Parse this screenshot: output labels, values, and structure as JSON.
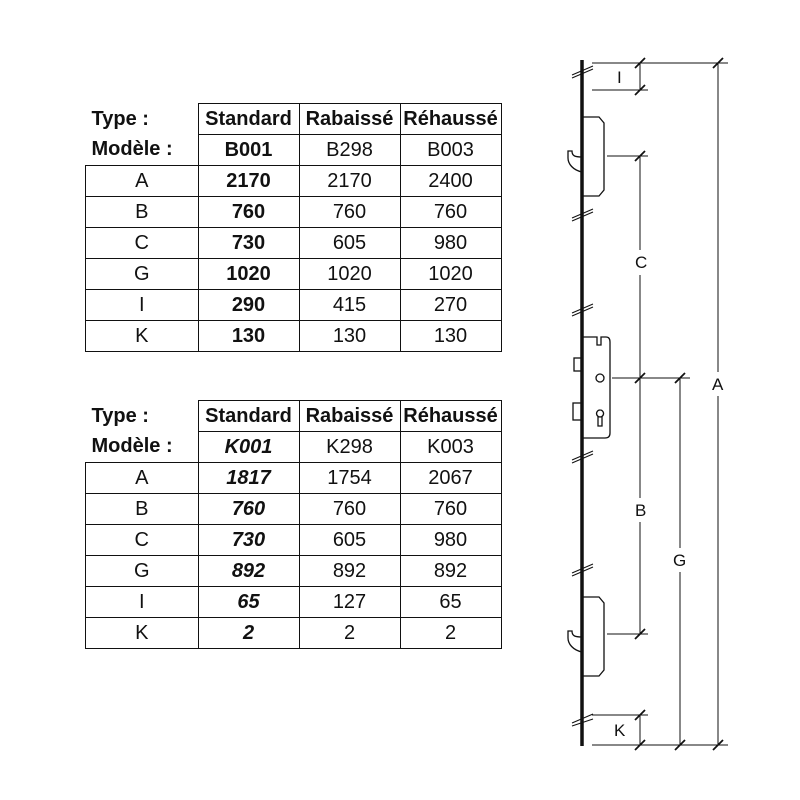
{
  "tables": [
    {
      "type_label": "Type :",
      "model_label": "Modèle :",
      "columns": [
        "Standard",
        "Rabaissé",
        "Réhaussé"
      ],
      "models": [
        "B001",
        "B298",
        "B003"
      ],
      "rows": [
        {
          "label": "A",
          "values": [
            "2170",
            "2170",
            "2400"
          ]
        },
        {
          "label": "B",
          "values": [
            "760",
            "760",
            "760"
          ]
        },
        {
          "label": "C",
          "values": [
            "730",
            "605",
            "980"
          ]
        },
        {
          "label": "G",
          "values": [
            "1020",
            "1020",
            "1020"
          ]
        },
        {
          "label": "I",
          "values": [
            "290",
            "415",
            "270"
          ]
        },
        {
          "label": "K",
          "values": [
            "130",
            "130",
            "130"
          ]
        }
      ]
    },
    {
      "type_label": "Type :",
      "model_label": "Modèle :",
      "columns": [
        "Standard",
        "Rabaissé",
        "Réhaussé"
      ],
      "models": [
        "K001",
        "K298",
        "K003"
      ],
      "rows": [
        {
          "label": "A",
          "values": [
            "1817",
            "1754",
            "2067"
          ]
        },
        {
          "label": "B",
          "values": [
            "760",
            "760",
            "760"
          ]
        },
        {
          "label": "C",
          "values": [
            "730",
            "605",
            "980"
          ]
        },
        {
          "label": "G",
          "values": [
            "892",
            "892",
            "892"
          ]
        },
        {
          "label": "I",
          "values": [
            "65",
            "127",
            "65"
          ]
        },
        {
          "label": "K",
          "values": [
            "2",
            "2",
            "2"
          ]
        }
      ]
    }
  ],
  "diagram": {
    "labels": {
      "I": "I",
      "C": "C",
      "A": "A",
      "B": "B",
      "G": "G",
      "K": "K"
    }
  }
}
